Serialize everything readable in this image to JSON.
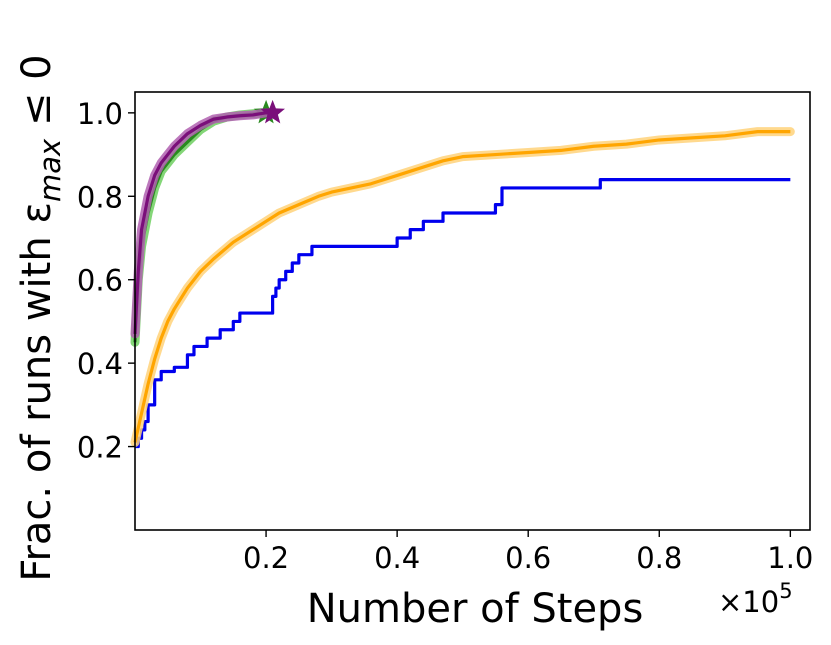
{
  "chart_data": {
    "type": "line",
    "title": "",
    "xlabel": "Number of Steps",
    "ylabel": "Frac. of runs with ε",
    "ylabel_sub": "max",
    "ylabel_suffix": " ≤ 0",
    "x_multiplier_label": "×10",
    "x_multiplier_exp": "5",
    "xlim": [
      0.0,
      1.03
    ],
    "ylim": [
      0.0,
      1.05
    ],
    "x_ticks": [
      0.2,
      0.4,
      0.6,
      0.8,
      1.0
    ],
    "x_tick_labels": [
      "0.2",
      "0.4",
      "0.6",
      "0.8",
      "1.0"
    ],
    "y_ticks": [
      0.2,
      0.4,
      0.6,
      0.8,
      1.0
    ],
    "y_tick_labels": [
      "0.2",
      "0.4",
      "0.6",
      "0.8",
      "1.0"
    ],
    "grid": false,
    "legend": "none",
    "series": [
      {
        "color": "#0000ee",
        "band": false,
        "step": true,
        "x": [
          0.0,
          0.005,
          0.01,
          0.015,
          0.02,
          0.03,
          0.04,
          0.06,
          0.08,
          0.09,
          0.11,
          0.13,
          0.15,
          0.16,
          0.21,
          0.215,
          0.22,
          0.23,
          0.24,
          0.25,
          0.26,
          0.27,
          0.3,
          0.35,
          0.4,
          0.42,
          0.44,
          0.47,
          0.55,
          0.56,
          0.7,
          0.71,
          1.0
        ],
        "y": [
          0.2,
          0.22,
          0.24,
          0.26,
          0.3,
          0.36,
          0.38,
          0.39,
          0.42,
          0.44,
          0.46,
          0.48,
          0.5,
          0.52,
          0.56,
          0.58,
          0.6,
          0.62,
          0.64,
          0.66,
          0.66,
          0.68,
          0.68,
          0.68,
          0.7,
          0.72,
          0.74,
          0.76,
          0.78,
          0.82,
          0.82,
          0.84,
          0.84
        ]
      },
      {
        "color": "#ffa500",
        "band": true,
        "band_color": "#ffd27a",
        "step": false,
        "x": [
          0.0,
          0.01,
          0.02,
          0.03,
          0.04,
          0.05,
          0.06,
          0.08,
          0.1,
          0.12,
          0.15,
          0.18,
          0.2,
          0.22,
          0.25,
          0.28,
          0.3,
          0.33,
          0.36,
          0.4,
          0.44,
          0.47,
          0.5,
          0.55,
          0.6,
          0.65,
          0.7,
          0.75,
          0.8,
          0.85,
          0.9,
          0.95,
          1.0
        ],
        "y": [
          0.21,
          0.28,
          0.35,
          0.41,
          0.46,
          0.5,
          0.53,
          0.58,
          0.62,
          0.65,
          0.69,
          0.72,
          0.74,
          0.76,
          0.78,
          0.8,
          0.81,
          0.82,
          0.83,
          0.85,
          0.87,
          0.885,
          0.895,
          0.9,
          0.905,
          0.91,
          0.92,
          0.925,
          0.935,
          0.94,
          0.945,
          0.955,
          0.955
        ]
      },
      {
        "color": "#2a8a1f",
        "band": true,
        "band_color": "#6fcf60",
        "step": false,
        "marker": "star",
        "x": [
          0.0,
          0.005,
          0.01,
          0.02,
          0.03,
          0.04,
          0.05,
          0.06,
          0.08,
          0.1,
          0.12,
          0.14,
          0.16,
          0.18,
          0.2
        ],
        "y": [
          0.45,
          0.6,
          0.68,
          0.76,
          0.82,
          0.86,
          0.88,
          0.9,
          0.93,
          0.96,
          0.98,
          0.99,
          0.995,
          0.998,
          1.0
        ]
      },
      {
        "color": "#7a0f7a",
        "band": true,
        "band_color": "#b060b0",
        "step": false,
        "marker": "star",
        "x": [
          0.0,
          0.005,
          0.01,
          0.02,
          0.03,
          0.04,
          0.05,
          0.06,
          0.08,
          0.1,
          0.12,
          0.14,
          0.16,
          0.18,
          0.2,
          0.21
        ],
        "y": [
          0.47,
          0.62,
          0.72,
          0.8,
          0.85,
          0.88,
          0.9,
          0.92,
          0.95,
          0.97,
          0.985,
          0.99,
          0.993,
          0.995,
          1.0,
          1.0
        ]
      }
    ]
  }
}
